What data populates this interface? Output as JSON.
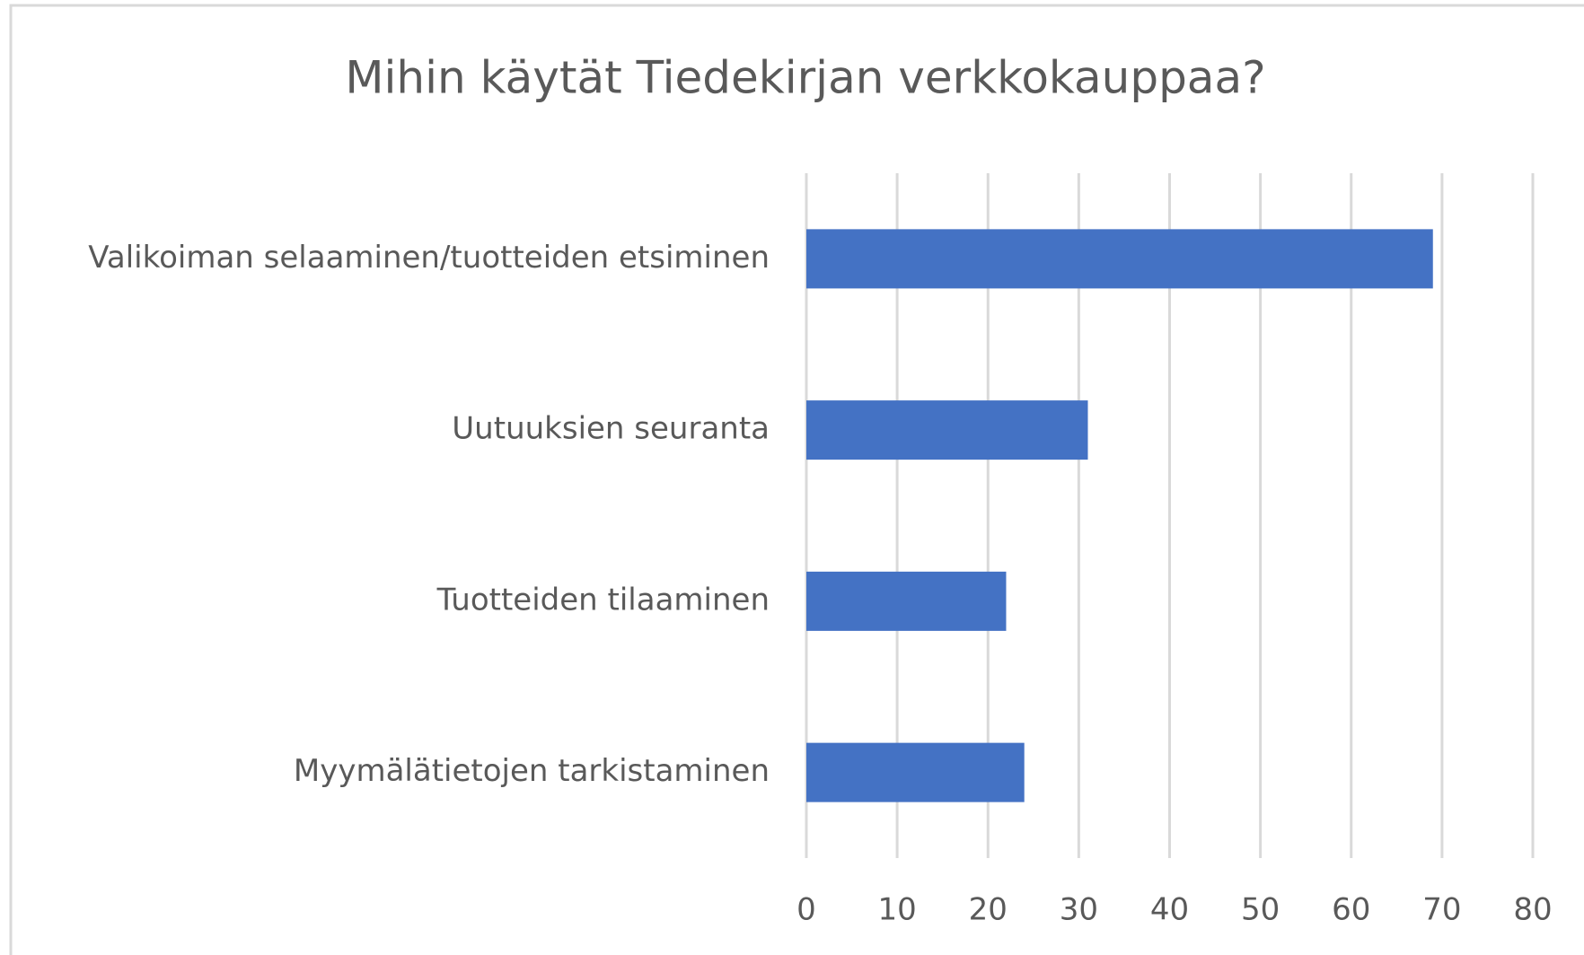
{
  "chart_data": {
    "type": "bar",
    "orientation": "horizontal",
    "title": "Mihin käytät Tiedekirjan verkkokauppaa?",
    "categories": [
      "Valikoiman selaaminen/tuotteiden etsiminen",
      "Uutuuksien seuranta",
      "Tuotteiden tilaaminen",
      "Myymälätietojen tarkistaminen"
    ],
    "values": [
      69,
      31,
      22,
      24
    ],
    "color": "#4472c4",
    "xlim": [
      0,
      80
    ],
    "xticks": [
      0,
      10,
      20,
      30,
      40,
      50,
      60,
      70,
      80
    ],
    "grid": true
  }
}
